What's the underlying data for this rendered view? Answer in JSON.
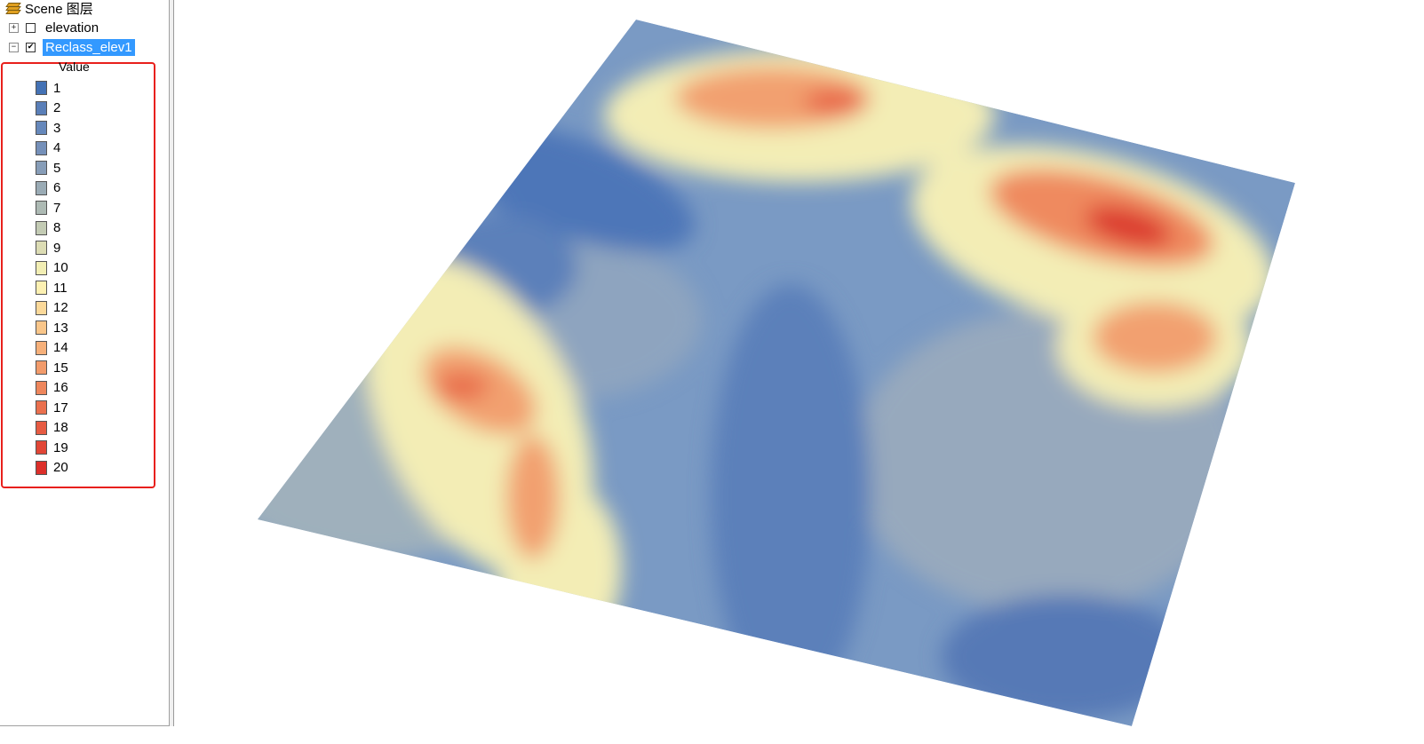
{
  "toc": {
    "root_label": "Scene 图层",
    "layers": [
      {
        "name": "elevation",
        "expander": "+",
        "checked": ""
      },
      {
        "name": "Reclass_elev1",
        "expander": "−",
        "checked": "✔"
      }
    ],
    "legend_header": "Value",
    "legend": [
      {
        "label": "1",
        "color": "#4472b5"
      },
      {
        "label": "2",
        "color": "#5a7fb8"
      },
      {
        "label": "3",
        "color": "#6688bb"
      },
      {
        "label": "4",
        "color": "#7590b9"
      },
      {
        "label": "5",
        "color": "#879db8"
      },
      {
        "label": "6",
        "color": "#9aabb5"
      },
      {
        "label": "7",
        "color": "#adbab4"
      },
      {
        "label": "8",
        "color": "#c3cbb4"
      },
      {
        "label": "9",
        "color": "#dcdcb4"
      },
      {
        "label": "10",
        "color": "#f2eeb4"
      },
      {
        "label": "11",
        "color": "#fcf0b2"
      },
      {
        "label": "12",
        "color": "#fbd99a"
      },
      {
        "label": "13",
        "color": "#f9c68a"
      },
      {
        "label": "14",
        "color": "#f6b07a"
      },
      {
        "label": "15",
        "color": "#f29b6b"
      },
      {
        "label": "16",
        "color": "#ee865c"
      },
      {
        "label": "17",
        "color": "#ea704e"
      },
      {
        "label": "18",
        "color": "#e65b42"
      },
      {
        "label": "19",
        "color": "#e14636"
      },
      {
        "label": "20",
        "color": "#dc2f2a"
      }
    ]
  }
}
